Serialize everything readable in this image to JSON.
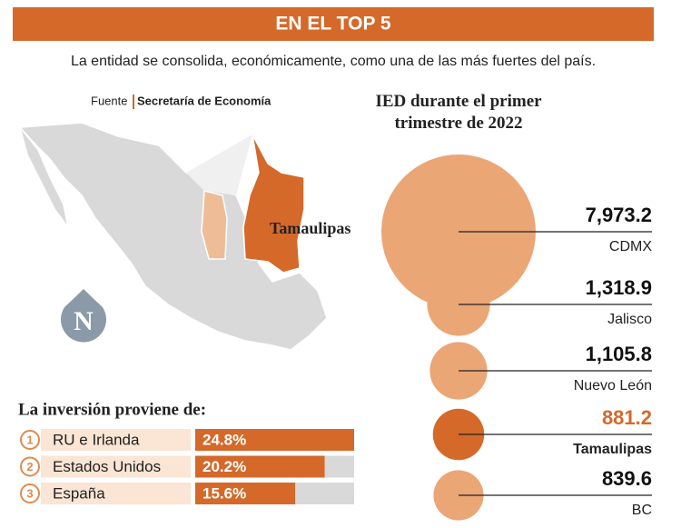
{
  "header": {
    "title": "EN EL TOP 5",
    "subtitle": "La entidad se consolida, económicamente, como una de las más fuertes del país."
  },
  "map": {
    "source_label": "Fuente",
    "source": "Secretaría de Economía",
    "highlight_label": "Tamaulipas",
    "logo": "N"
  },
  "chart_data": [
    {
      "type": "bubble",
      "title": "IED durante el primer trimestre de 2022",
      "categories": [
        "CDMX",
        "Jalisco",
        "Nuevo León",
        "Tamaulipas",
        "BC"
      ],
      "values": [
        7973.2,
        1318.9,
        1105.8,
        881.2,
        839.6
      ],
      "value_labels": [
        "7,973.2",
        "1,318.9",
        "1,105.8",
        "881.2",
        "839.6"
      ],
      "colors": [
        "#eba676",
        "#eba676",
        "#eba676",
        "#d4692a",
        "#eba676"
      ],
      "highlight": 3
    },
    {
      "type": "bar",
      "title": "La inversión proviene de:",
      "ranks": [
        1,
        2,
        3
      ],
      "categories": [
        "RU e Irlanda",
        "Estados Unidos",
        "España"
      ],
      "values": [
        24.8,
        20.2,
        15.6
      ],
      "value_labels": [
        "24.8%",
        "20.2%",
        "15.6%"
      ],
      "xlim": [
        0,
        24.8
      ],
      "color": "#d4692a"
    }
  ]
}
